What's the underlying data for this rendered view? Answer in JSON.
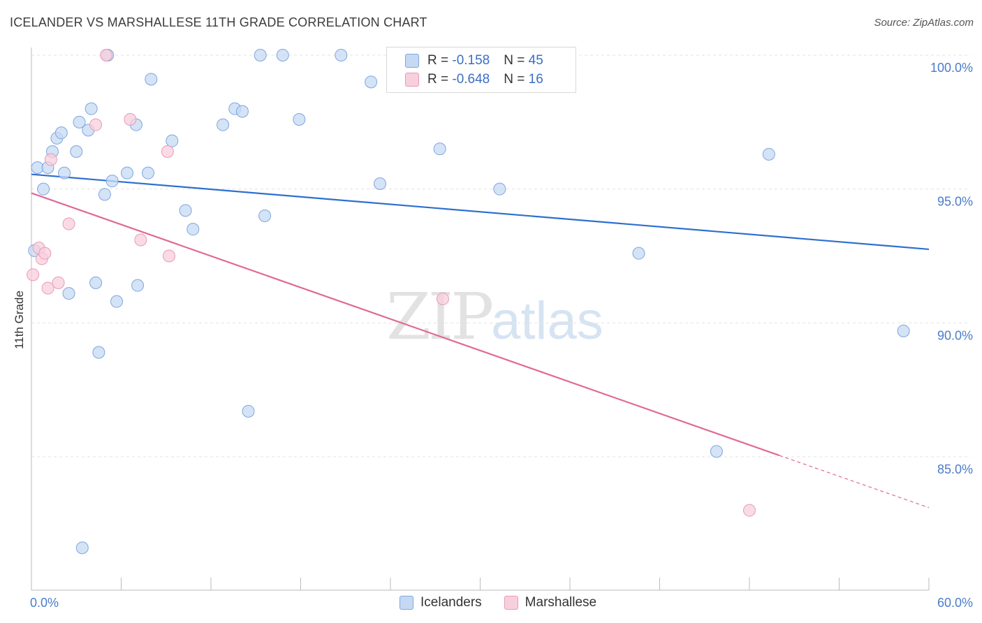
{
  "header": {
    "title": "ICELANDER VS MARSHALLESE 11TH GRADE CORRELATION CHART",
    "source": "Source: ZipAtlas.com"
  },
  "watermark": {
    "zip": "ZIP",
    "atlas": "atlas"
  },
  "legend": {
    "rows": [
      {
        "r_label": "R = ",
        "r_value": "-0.158",
        "n_label": "N = ",
        "n_value": "45"
      },
      {
        "r_label": "R = ",
        "r_value": "-0.648",
        "n_label": "N = ",
        "n_value": "16"
      }
    ]
  },
  "colors": {
    "blue_fill": "#c5d9f3",
    "blue_stroke": "#7fa6e0",
    "blue_line": "#2e6fd0",
    "pink_fill": "#f8cfdc",
    "pink_stroke": "#e99ab4",
    "pink_line": "#e06a94",
    "grid": "#e3e3e3",
    "axis": "#bbbbbb"
  },
  "chart_data": {
    "type": "scatter",
    "title": "ICELANDER VS MARSHALLESE 11TH GRADE CORRELATION CHART",
    "xlabel": "",
    "ylabel": "11th Grade",
    "xlim": [
      0,
      60
    ],
    "ylim": [
      80.5,
      101
    ],
    "x_tick_labels": [
      "0.0%",
      "60.0%"
    ],
    "y_ticks": [
      85,
      90,
      95,
      100
    ],
    "y_tick_labels": [
      "85.0%",
      "90.0%",
      "95.0%",
      "100.0%"
    ],
    "legend_position": "top-center",
    "series": [
      {
        "name": "Icelanders",
        "r": -0.158,
        "n": 45,
        "points": [
          [
            0.2,
            92.7
          ],
          [
            0.4,
            95.8
          ],
          [
            0.8,
            95.0
          ],
          [
            1.1,
            95.8
          ],
          [
            1.4,
            96.4
          ],
          [
            1.7,
            96.9
          ],
          [
            2.0,
            97.1
          ],
          [
            2.2,
            95.6
          ],
          [
            2.5,
            91.1
          ],
          [
            3.0,
            96.4
          ],
          [
            3.2,
            97.5
          ],
          [
            3.4,
            81.6
          ],
          [
            3.8,
            97.2
          ],
          [
            4.0,
            98.0
          ],
          [
            4.3,
            91.5
          ],
          [
            4.5,
            88.9
          ],
          [
            4.9,
            94.8
          ],
          [
            5.1,
            100.0
          ],
          [
            5.4,
            95.3
          ],
          [
            5.7,
            90.8
          ],
          [
            6.4,
            95.6
          ],
          [
            7.0,
            97.4
          ],
          [
            7.1,
            91.4
          ],
          [
            7.8,
            95.6
          ],
          [
            8.0,
            99.1
          ],
          [
            9.4,
            96.8
          ],
          [
            10.3,
            94.2
          ],
          [
            10.8,
            93.5
          ],
          [
            12.8,
            97.4
          ],
          [
            13.6,
            98.0
          ],
          [
            14.1,
            97.9
          ],
          [
            14.5,
            86.7
          ],
          [
            15.3,
            100.0
          ],
          [
            15.6,
            94.0
          ],
          [
            16.8,
            100.0
          ],
          [
            17.9,
            97.6
          ],
          [
            20.7,
            100.0
          ],
          [
            22.7,
            99.0
          ],
          [
            23.3,
            95.2
          ],
          [
            27.3,
            96.5
          ],
          [
            31.3,
            95.0
          ],
          [
            40.6,
            92.6
          ],
          [
            45.8,
            85.2
          ],
          [
            49.3,
            96.3
          ],
          [
            58.3,
            89.7
          ]
        ],
        "trend": {
          "x": [
            0,
            60
          ],
          "y": [
            95.55,
            92.75
          ]
        }
      },
      {
        "name": "Marshallese",
        "r": -0.648,
        "n": 16,
        "points": [
          [
            0.1,
            91.8
          ],
          [
            0.5,
            92.8
          ],
          [
            0.7,
            92.4
          ],
          [
            0.9,
            92.6
          ],
          [
            1.1,
            91.3
          ],
          [
            1.3,
            96.1
          ],
          [
            1.8,
            91.5
          ],
          [
            2.5,
            93.7
          ],
          [
            4.3,
            97.4
          ],
          [
            5.0,
            100.0
          ],
          [
            6.6,
            97.6
          ],
          [
            7.3,
            93.1
          ],
          [
            9.1,
            96.4
          ],
          [
            9.2,
            92.5
          ],
          [
            27.5,
            90.9
          ],
          [
            48.0,
            83.0
          ]
        ],
        "trend": {
          "x": [
            0,
            50
          ],
          "y": [
            94.85,
            85.05
          ]
        },
        "trend_dashed": {
          "x": [
            50,
            60
          ],
          "y": [
            85.05,
            83.1
          ]
        }
      }
    ]
  }
}
